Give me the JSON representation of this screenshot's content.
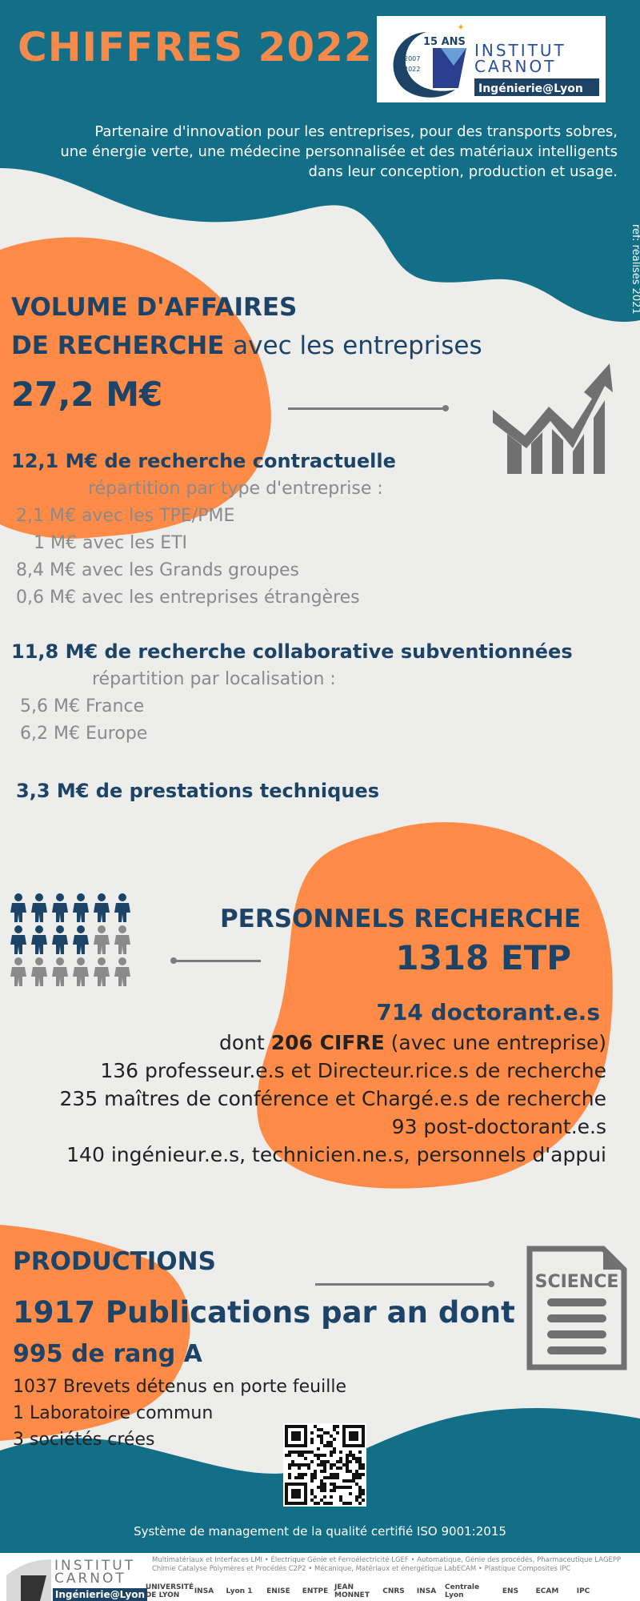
{
  "header": {
    "title": "CHIFFRES 2022",
    "intro_lines": [
      "Partenaire d'innovation pour les entreprises, pour des transports sobres,",
      "une énergie verte, une médecine personnalisée et des matériaux intelligents",
      "dans leur conception, production et usage."
    ],
    "side_note": "ref: réalisés 2021"
  },
  "logo": {
    "anniversary": "15 ANS",
    "years": [
      "2007",
      "2022"
    ],
    "line1": "INSTITUT",
    "line2": "CARNOT",
    "tag": "Ingénierie@Lyon"
  },
  "affaires": {
    "title_line1": "VOLUME D'AFFAIRES",
    "title_line2_bold": "DE RECHERCHE",
    "title_line2_rest": "avec les entreprises",
    "total": "27,2 M€",
    "contract_head": "12,1 M€ de recherche contractuelle",
    "contract_sub": "répartition par type d'entreprise :",
    "contract_items": [
      "2,1 M€ avec les TPE/PME",
      "1 M€ avec les ETI",
      "8,4 M€ avec les Grands groupes",
      "0,6 M€ avec les entreprises étrangères"
    ],
    "collab_head": "11,8 M€ de recherche collaborative subventionnées",
    "collab_sub": "répartition par localisation :",
    "collab_items": [
      "5,6 M€ France",
      "6,2 M€ Europe"
    ],
    "presta": "3,3 M€ de prestations techniques"
  },
  "personnels": {
    "title": "PERSONNELS RECHERCHE",
    "total": "1318 ETP",
    "doctorants": "714 doctorant.e.s",
    "cifre_prefix": "dont ",
    "cifre_bold": "206 CIFRE",
    "cifre_suffix": " (avec une entreprise)",
    "lines": [
      "136 professeur.e.s et Directeur.rice.s de recherche",
      "235 maîtres de conférence et Chargé.e.s de recherche",
      "93 post-doctorant.e.s",
      "140 ingénieur.e.s, technicien.ne.s, personnels d'appui"
    ]
  },
  "productions": {
    "title": "PRODUCTIONS",
    "publications": "1917 Publications par an dont",
    "rang_a": "995 de rang A",
    "items": [
      "1037 Brevets détenus en porte feuille",
      "1 Laboratoire commun",
      "3 sociétés crées"
    ],
    "science_label": "SCIENCE"
  },
  "footer": {
    "quality": "Système de management de la qualité certifié ISO 9001:2015",
    "logo_line1": "INSTITUT",
    "logo_line2": "CARNOT",
    "logo_tag": "Ingénierie@Lyon",
    "labs_text": "Multimatériaux et Interfaces LMI  •  Électrique Génie et Ferroélectricité LGEF  •  Automatique, Génie des procédés, Pharmaceutique LAGEPP  Chimie Catalyse Polymères et Procédés C2P2  •  Mécanique, Matériaux et énergétique LabECAM  •  Plastique Composites IPC",
    "partners": [
      "UNIVERSITÉ DE LYON",
      "INSA",
      "Lyon 1",
      "ENISE",
      "ENTPE",
      "JEAN MONNET",
      "CNRS",
      "INSA",
      "Centrale Lyon",
      "ENS",
      "ECAM",
      "IPC"
    ]
  },
  "colors": {
    "teal": "#136f88",
    "orange": "#fe8b48",
    "navy": "#1d4466",
    "grey_icon": "#707070",
    "background": "#ededec"
  },
  "icons": [
    "growth-chart-icon",
    "people-group-icon",
    "science-document-icon",
    "qr-code"
  ]
}
